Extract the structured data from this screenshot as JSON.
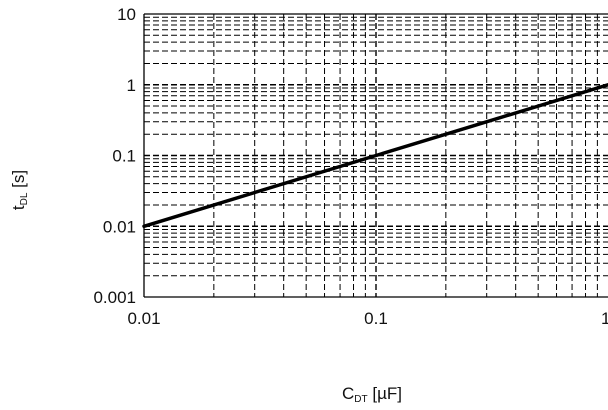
{
  "chart_data": {
    "type": "line",
    "x_scale": "log",
    "y_scale": "log",
    "xlim": [
      0.01,
      1
    ],
    "ylim": [
      0.001,
      10
    ],
    "x_ticks": [
      "0.01",
      "0.1",
      "1"
    ],
    "y_ticks": [
      "10",
      "1",
      "0.1",
      "0.01",
      "0.001"
    ],
    "xlabel": {
      "main": "C",
      "sub": "DT",
      "unit": " [µF]"
    },
    "ylabel": {
      "main": "t",
      "sub": "DL",
      "unit": " [s]"
    },
    "grid": true,
    "series": [
      {
        "x": [
          0.01,
          0.1,
          1
        ],
        "y": [
          0.01,
          0.1,
          1
        ],
        "color": "#000000"
      }
    ]
  }
}
